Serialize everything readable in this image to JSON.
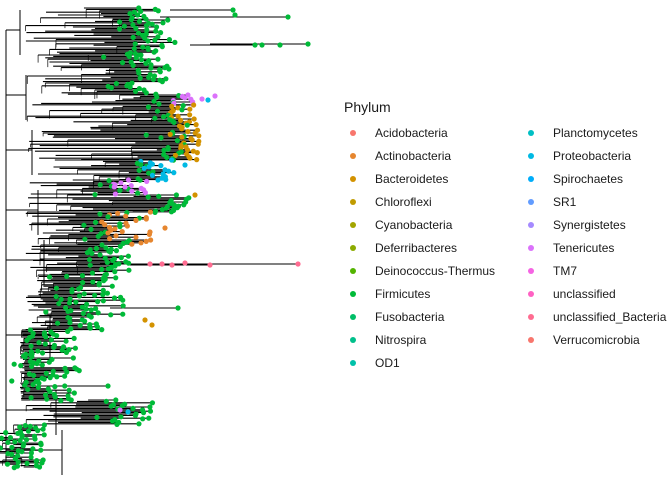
{
  "legend": {
    "title": "Phylum",
    "columns": [
      [
        {
          "label": "Acidobacteria",
          "color": "#F8766D"
        },
        {
          "label": "Actinobacteria",
          "color": "#E6862F"
        },
        {
          "label": "Bacteroidetes",
          "color": "#D39200"
        },
        {
          "label": "Chloroflexi",
          "color": "#C09B00"
        },
        {
          "label": "Cyanobacteria",
          "color": "#A3A500"
        },
        {
          "label": "Deferribacteres",
          "color": "#8CAB00"
        },
        {
          "label": "Deinococcus-Thermus",
          "color": "#53B400"
        },
        {
          "label": "Firmicutes",
          "color": "#00BA38"
        },
        {
          "label": "Fusobacteria",
          "color": "#00BE67"
        },
        {
          "label": "Nitrospira",
          "color": "#00C08B"
        },
        {
          "label": "OD1",
          "color": "#00C1A9"
        }
      ],
      [
        {
          "label": "Planctomycetes",
          "color": "#00BFC4"
        },
        {
          "label": "Proteobacteria",
          "color": "#00B9E3"
        },
        {
          "label": "Spirochaetes",
          "color": "#00ADFA"
        },
        {
          "label": "SR1",
          "color": "#619CFF"
        },
        {
          "label": "Synergistetes",
          "color": "#A58AFF"
        },
        {
          "label": "Tenericutes",
          "color": "#DB72FB"
        },
        {
          "label": "TM7",
          "color": "#F564E3"
        },
        {
          "label": "unclassified",
          "color": "#FF61C3"
        },
        {
          "label": "unclassified_Bacteria",
          "color": "#FF6C91"
        },
        {
          "label": "Verrucomicrobia",
          "color": "#F8766D"
        }
      ]
    ]
  },
  "tree": {
    "branch_color": "#000000",
    "tip_regions": [
      {
        "phylum": "Firmicutes",
        "color": "#00BA38",
        "tips": 240
      },
      {
        "phylum": "Bacteroidetes",
        "color": "#D39200",
        "tips": 55
      },
      {
        "phylum": "Proteobacteria",
        "color": "#00B9E3",
        "tips": 35
      },
      {
        "phylum": "Tenericutes",
        "color": "#DB72FB",
        "tips": 14
      },
      {
        "phylum": "Actinobacteria",
        "color": "#E6862F",
        "tips": 45
      },
      {
        "phylum": "unclassified_Bacteria",
        "color": "#FF6C91",
        "tips": 6
      }
    ]
  }
}
